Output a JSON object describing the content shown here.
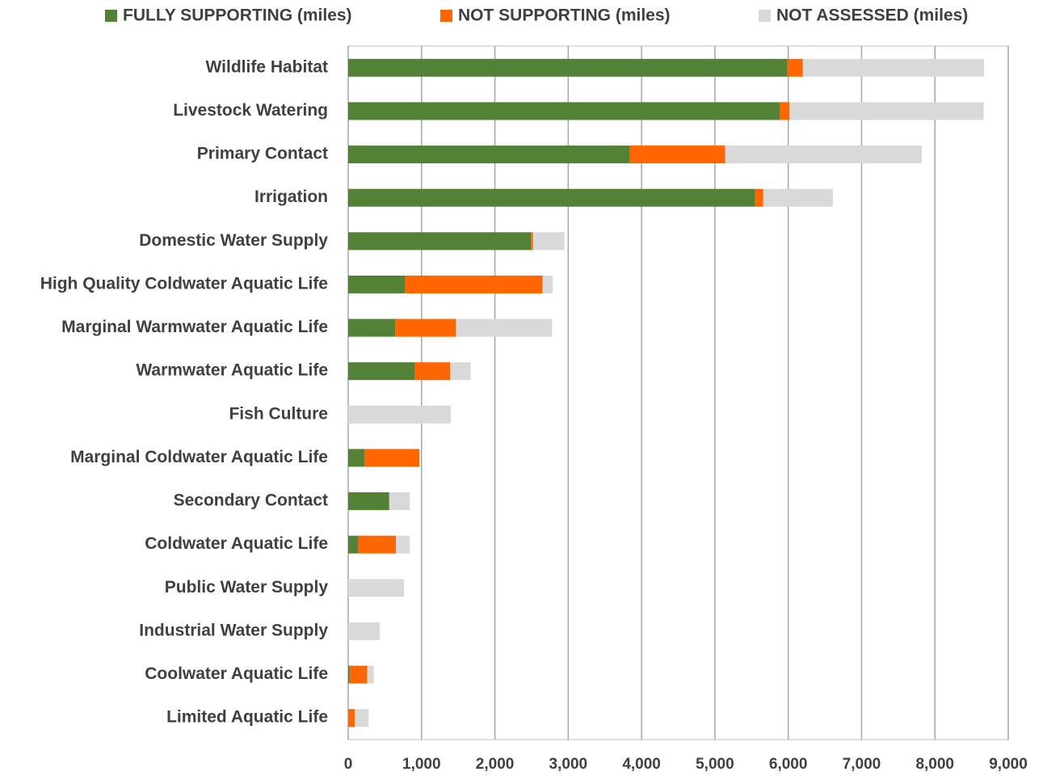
{
  "chart_data": {
    "type": "stacked-barh",
    "categories": [
      "Wildlife Habitat",
      "Livestock Watering",
      "Primary Contact",
      "Irrigation",
      "Domestic Water Supply",
      "High Quality Coldwater Aquatic Life",
      "Marginal Warmwater Aquatic Life",
      "Warmwater Aquatic Life",
      "Fish Culture",
      "Marginal Coldwater Aquatic Life",
      "Secondary Contact",
      "Coldwater Aquatic Life",
      "Public Water Supply",
      "Industrial Water Supply",
      "Coolwater Aquatic Life",
      "Limited Aquatic Life"
    ],
    "series": [
      {
        "name": "FULLY SUPPORTING (miles)",
        "color": "#538135",
        "values": [
          5990,
          5890,
          3840,
          5550,
          2490,
          780,
          640,
          910,
          0,
          220,
          560,
          140,
          0,
          0,
          20,
          0
        ]
      },
      {
        "name": "NOT SUPPORTING (miles)",
        "color": "#ff6600",
        "values": [
          210,
          125,
          1300,
          110,
          30,
          1870,
          830,
          480,
          0,
          750,
          0,
          510,
          0,
          0,
          240,
          90
        ]
      },
      {
        "name": "NOT ASSESSED (miles)",
        "color": "#d9d9d9",
        "values": [
          2470,
          2650,
          2680,
          950,
          430,
          140,
          1310,
          280,
          1400,
          0,
          280,
          190,
          760,
          430,
          90,
          190
        ]
      }
    ],
    "xlim": [
      0,
      9000
    ],
    "xticks": [
      0,
      {
        "value": 1000,
        "label": "1,000"
      },
      {
        "value": 2000,
        "label": "2,000"
      },
      {
        "value": 3000,
        "label": "3,000"
      },
      {
        "value": 4000,
        "label": "4,000"
      },
      {
        "value": 5000,
        "label": "5,000"
      },
      {
        "value": 6000,
        "label": "6,000"
      },
      {
        "value": 7000,
        "label": "7,000"
      },
      {
        "value": 8000,
        "label": "8,000"
      },
      {
        "value": 9000,
        "label": "9,000"
      }
    ],
    "grid": true,
    "legend": "top"
  }
}
